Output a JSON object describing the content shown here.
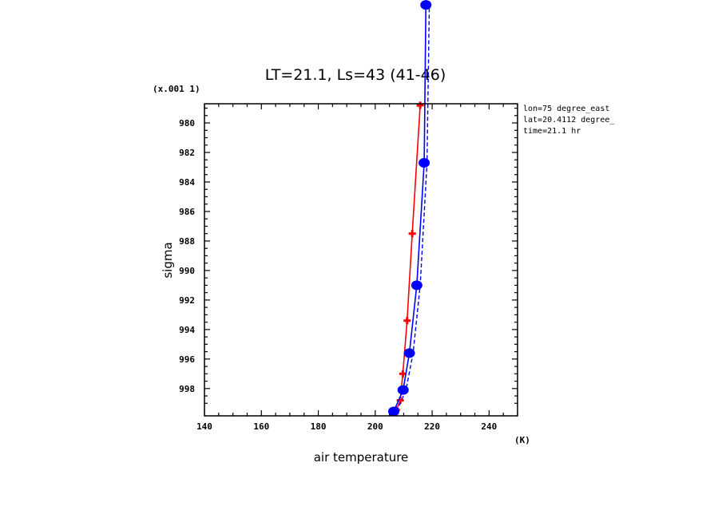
{
  "chart_data": {
    "type": "line",
    "title": "LT=21.1, Ls=43 (41-46)",
    "xlabel": "air temperature",
    "ylabel": "sigma",
    "x_unit": "(K)",
    "y_unit": "(x.001 1)",
    "xlim": [
      140,
      250
    ],
    "ylim": [
      999.85,
      978.7
    ],
    "y_inverted": true,
    "x_ticks": [
      140,
      160,
      180,
      200,
      220,
      240
    ],
    "y_ticks": [
      980,
      982,
      984,
      986,
      988,
      990,
      992,
      994,
      996,
      998
    ],
    "info": [
      "lon=75 degree_east",
      "lat=20.4112 degree_",
      "time=21.1 hr"
    ],
    "grid": false,
    "legend": "none",
    "series": [
      {
        "color": "#ff0000",
        "style": "solid",
        "marker": "plus",
        "points": [
          {
            "x": 206.3,
            "y": 999.95
          },
          {
            "x": 207.4,
            "y": 999.45
          },
          {
            "x": 208.8,
            "y": 998.8
          },
          {
            "x": 209.7,
            "y": 997.0
          },
          {
            "x": 211.2,
            "y": 993.4
          },
          {
            "x": 213.0,
            "y": 987.5
          },
          {
            "x": 215.8,
            "y": 978.8
          }
        ]
      },
      {
        "color": "#0000ff",
        "style": "solid",
        "marker": "dot",
        "points": [
          {
            "x": 206.5,
            "y": 999.55
          },
          {
            "x": 209.8,
            "y": 998.1
          },
          {
            "x": 212.0,
            "y": 995.6
          },
          {
            "x": 214.6,
            "y": 991.0
          },
          {
            "x": 217.2,
            "y": 982.7
          },
          {
            "x": 217.8,
            "y": 972.0
          }
        ]
      },
      {
        "color": "#0000ff",
        "style": "dashed",
        "marker": "none",
        "points": [
          {
            "x": 207.6,
            "y": 999.55
          },
          {
            "x": 210.8,
            "y": 998.1
          },
          {
            "x": 213.3,
            "y": 995.6
          },
          {
            "x": 215.8,
            "y": 991.0
          },
          {
            "x": 218.2,
            "y": 982.7
          },
          {
            "x": 219.0,
            "y": 972.0
          }
        ]
      }
    ]
  }
}
